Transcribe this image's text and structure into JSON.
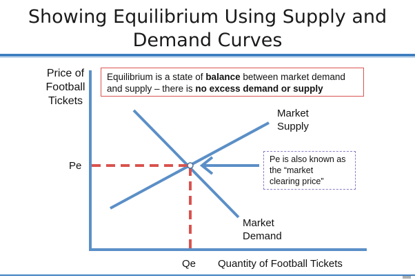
{
  "title": {
    "line1": "Showing Equilibrium Using Supply and",
    "line2": "Demand Curves"
  },
  "axes": {
    "y_label": [
      "Price of",
      "Football",
      "Tickets"
    ],
    "x_label": "Quantity of Football Tickets",
    "pe": "Pe",
    "qe": "Qe"
  },
  "definition": {
    "part1": "Equilibrium is a state of ",
    "bold1": "balance",
    "part2": " between market demand and supply – there is ",
    "bold2": "no excess demand or supply"
  },
  "note": {
    "lines": [
      "Pe is also known as",
      "the “market",
      "clearing price”"
    ]
  },
  "curves": {
    "supply": [
      "Market",
      "Supply"
    ],
    "demand": [
      "Market",
      "Demand"
    ]
  },
  "colors": {
    "curve": "#5b8fc7",
    "dashed": "#d9534f",
    "axis": "#5b8fc7",
    "header_bar": "#3f7fc0"
  }
}
